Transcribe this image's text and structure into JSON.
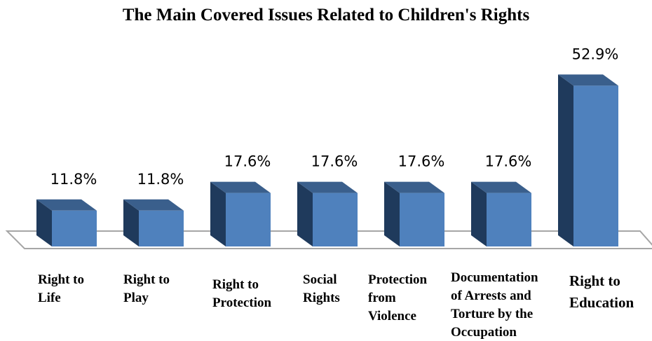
{
  "chart_data": {
    "type": "bar",
    "title": "The Main Covered Issues Related to Children's Rights",
    "categories": [
      "Right to Life",
      "Right to Play",
      "Right to Protection",
      "Social Rights",
      "Protection from Violence",
      "Documentation of Arrests and Torture by the Occupation",
      "Right to Education"
    ],
    "category_lines": [
      [
        "Right to",
        "Life"
      ],
      [
        "Right to",
        "Play"
      ],
      [
        "Right to",
        "Protection"
      ],
      [
        "Social",
        "Rights"
      ],
      [
        "Protection",
        "from",
        "Violence"
      ],
      [
        "Documentation",
        "of Arrests and",
        "Torture by the",
        "Occupation"
      ],
      [
        "Right to",
        "Education"
      ]
    ],
    "values": [
      11.8,
      11.8,
      17.6,
      17.6,
      17.6,
      17.6,
      52.9
    ],
    "value_labels": [
      "11.8%",
      "11.8%",
      "17.6%",
      "17.6%",
      "17.6%",
      "17.6%",
      "52.9%"
    ],
    "ylim": [
      0,
      60
    ],
    "grid": false,
    "legend": "none",
    "colors": {
      "bar_front": "#4f81bd",
      "bar_top": "#3a5f8c",
      "bar_side": "#1f3a5c",
      "floor_stroke": "#a6a6a6"
    }
  }
}
